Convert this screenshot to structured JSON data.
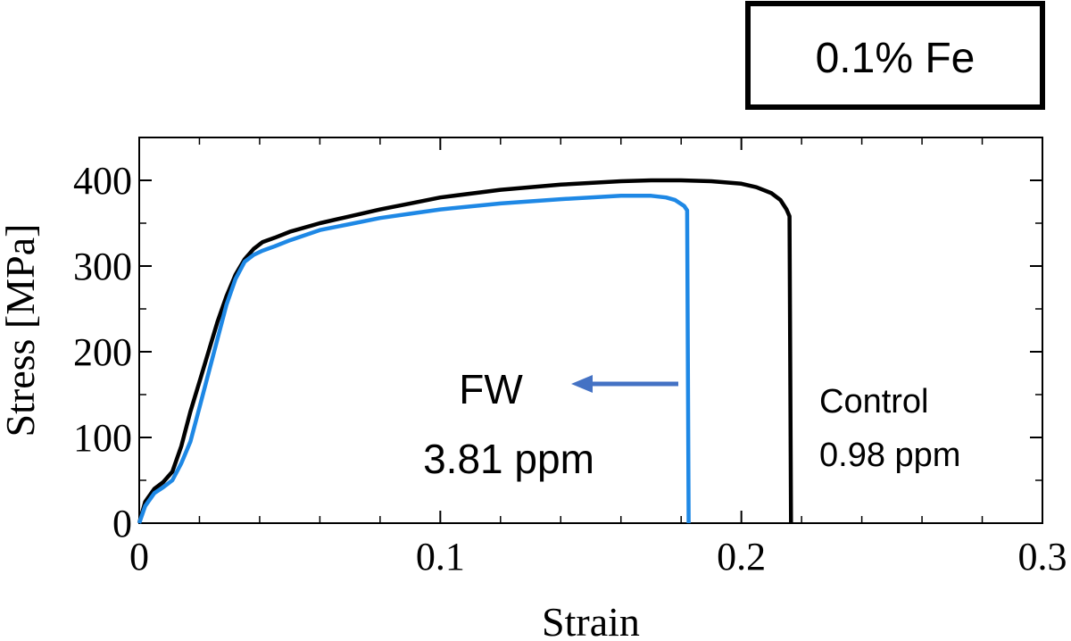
{
  "inset_label": "0.1% Fe",
  "chart_data": {
    "type": "line",
    "title": "",
    "xlabel": "Strain",
    "ylabel": "Stress [MPa]",
    "xlim": [
      0,
      0.3
    ],
    "ylim": [
      0,
      450
    ],
    "x_ticks": [
      0,
      0.1,
      0.2,
      0.3
    ],
    "x_tick_labels": [
      "0",
      "0.1",
      "0.2",
      "0.3"
    ],
    "y_ticks": [
      0,
      100,
      200,
      300,
      400
    ],
    "y_tick_labels": [
      "0",
      "100",
      "200",
      "300",
      "400"
    ],
    "grid": false,
    "legend": "none",
    "series": [
      {
        "color": "#000000",
        "x": [
          0,
          0.002,
          0.005,
          0.008,
          0.011,
          0.014,
          0.017,
          0.02,
          0.023,
          0.026,
          0.029,
          0.032,
          0.035,
          0.038,
          0.041,
          0.045,
          0.05,
          0.06,
          0.07,
          0.08,
          0.09,
          0.1,
          0.12,
          0.14,
          0.16,
          0.17,
          0.18,
          0.19,
          0.2,
          0.205,
          0.21,
          0.213,
          0.215,
          0.216,
          0.2165
        ],
        "y": [
          0,
          25,
          40,
          48,
          60,
          90,
          130,
          165,
          200,
          235,
          265,
          290,
          308,
          320,
          328,
          333,
          340,
          350,
          358,
          366,
          373,
          380,
          389,
          395,
          399,
          400,
          400,
          399,
          396,
          392,
          385,
          377,
          366,
          358,
          0
        ]
      },
      {
        "color": "#1E88E5",
        "x": [
          0,
          0.002,
          0.005,
          0.008,
          0.011,
          0.014,
          0.017,
          0.02,
          0.023,
          0.026,
          0.029,
          0.032,
          0.035,
          0.038,
          0.041,
          0.045,
          0.05,
          0.06,
          0.07,
          0.08,
          0.09,
          0.1,
          0.12,
          0.14,
          0.16,
          0.17,
          0.175,
          0.178,
          0.181,
          0.182,
          0.1825
        ],
        "y": [
          0,
          20,
          35,
          42,
          50,
          70,
          95,
          135,
          175,
          215,
          255,
          285,
          305,
          313,
          318,
          323,
          330,
          342,
          349,
          356,
          361,
          366,
          373,
          378,
          382,
          382,
          380,
          377,
          370,
          365,
          0
        ]
      }
    ],
    "annotations": [
      {
        "text": "FW",
        "x": 0.123,
        "y": 163
      },
      {
        "text": "3.81 ppm",
        "x": 0.123,
        "y": 74
      },
      {
        "text": "Control",
        "x": 0.227,
        "y": 148
      },
      {
        "text": "0.98 ppm",
        "x": 0.227,
        "y": 79
      }
    ]
  }
}
